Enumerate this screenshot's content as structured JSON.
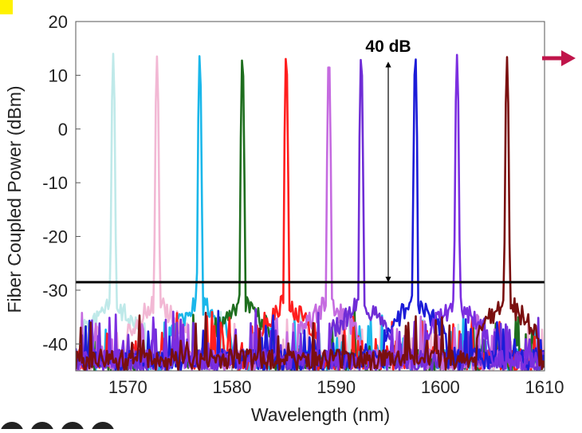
{
  "chart_data": {
    "type": "line",
    "title": "",
    "xlabel": "Wavelength (nm)",
    "ylabel": "Fiber Coupled Power (dBm)",
    "xlim": [
      1565,
      1610
    ],
    "ylim": [
      -45,
      20
    ],
    "xticks": [
      1570,
      1580,
      1590,
      1600,
      1610
    ],
    "yticks": [
      20,
      10,
      0,
      -10,
      -20,
      -30,
      -40
    ],
    "grid": false,
    "legend": "none",
    "threshold_line": {
      "y": -28.5,
      "color": "#000000"
    },
    "annotation": {
      "text": "40 dB",
      "x": 1595,
      "y_top": 12,
      "y_bottom": -28
    },
    "series": [
      {
        "peak_x": 1568.6,
        "peak_y": 14.0,
        "color": "#bfe9e9"
      },
      {
        "peak_x": 1572.8,
        "peak_y": 13.5,
        "color": "#f2b8d4"
      },
      {
        "peak_x": 1576.9,
        "peak_y": 13.8,
        "color": "#1ab7ea"
      },
      {
        "peak_x": 1581.0,
        "peak_y": 13.7,
        "color": "#1e6e1e"
      },
      {
        "peak_x": 1585.2,
        "peak_y": 14.0,
        "color": "#ff1e1e"
      },
      {
        "peak_x": 1589.3,
        "peak_y": 13.6,
        "color": "#c56be0"
      },
      {
        "peak_x": 1592.4,
        "peak_y": 13.8,
        "color": "#6f2dd6"
      },
      {
        "peak_x": 1597.6,
        "peak_y": 13.9,
        "color": "#1c1cd8"
      },
      {
        "peak_x": 1601.6,
        "peak_y": 13.8,
        "color": "#7b2ee0"
      },
      {
        "peak_x": 1606.4,
        "peak_y": 13.4,
        "color": "#7a0f0f"
      }
    ]
  },
  "side_arrow_color": "#c0144a"
}
